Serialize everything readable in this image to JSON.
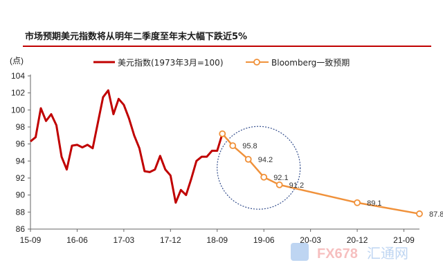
{
  "title": "市场预期美元指数将从明年二季度至年末大幅下跌近5%",
  "chart_data": {
    "type": "line",
    "ylabel": "(点)",
    "ylim": [
      86,
      104
    ],
    "yticks": [
      "86",
      "88",
      "90",
      "92",
      "94",
      "96",
      "98",
      "100",
      "102",
      "104"
    ],
    "x_ticks": [
      "15-09",
      "16-06",
      "17-03",
      "17-12",
      "18-09",
      "19-06",
      "20-03",
      "20-12",
      "21-09"
    ],
    "grid": false,
    "legend_position": "top",
    "series": [
      {
        "name": "美元指数(1973年3月=100)",
        "color": "#c00000",
        "x": [
          "2015-09",
          "2015-10",
          "2015-11",
          "2015-12",
          "2016-01",
          "2016-02",
          "2016-03",
          "2016-04",
          "2016-05",
          "2016-06",
          "2016-07",
          "2016-08",
          "2016-09",
          "2016-10",
          "2016-11",
          "2016-12",
          "2017-01",
          "2017-02",
          "2017-03",
          "2017-04",
          "2017-05",
          "2017-06",
          "2017-07",
          "2017-08",
          "2017-09",
          "2017-10",
          "2017-11",
          "2017-12",
          "2018-01",
          "2018-02",
          "2018-03",
          "2018-04",
          "2018-05",
          "2018-06",
          "2018-07",
          "2018-08",
          "2018-09",
          "2018-10"
        ],
        "values": [
          96.3,
          96.8,
          100.2,
          98.7,
          99.5,
          98.2,
          94.5,
          93.0,
          95.8,
          95.9,
          95.6,
          95.9,
          95.5,
          98.5,
          101.5,
          102.3,
          99.5,
          101.3,
          100.6,
          99.0,
          97.0,
          95.5,
          92.8,
          92.7,
          93.0,
          94.6,
          93.0,
          92.3,
          89.1,
          90.6,
          90.0,
          91.9,
          94.0,
          94.5,
          94.5,
          95.2,
          95.2,
          97.2
        ]
      },
      {
        "name": "Bloomberg一致预期",
        "color": "#f0913a",
        "x": [
          "2018-10",
          "2018-12",
          "2019-03",
          "2019-06",
          "2019-09",
          "2019-12",
          "2020-12",
          "2021-12"
        ],
        "values": [
          97.2,
          95.8,
          94.2,
          92.1,
          91.2,
          null,
          89.1,
          87.8
        ],
        "labels": [
          "",
          "95.8",
          "94.2",
          "92.1",
          "91.2",
          "",
          "89.1",
          "87.8"
        ]
      }
    ]
  },
  "watermark": {
    "text1": "FX678",
    "text2": "汇通网"
  }
}
